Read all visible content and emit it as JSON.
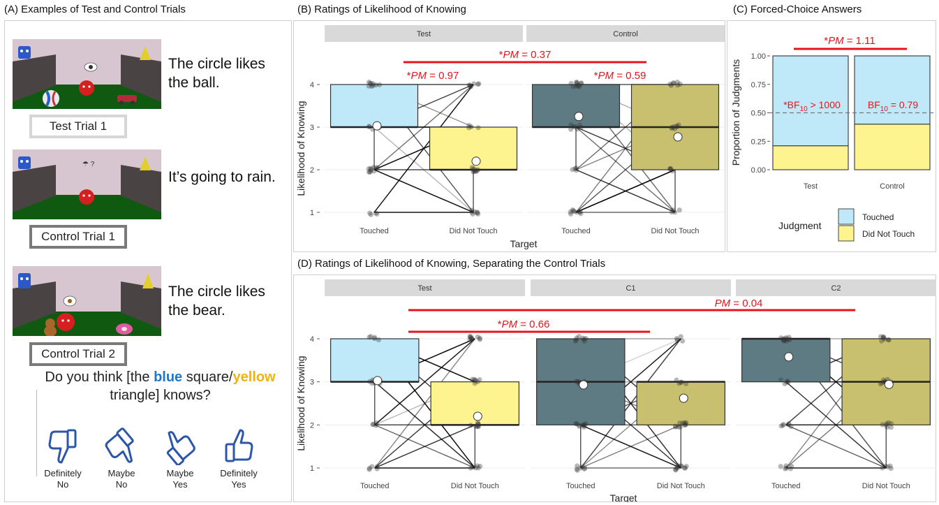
{
  "panel_titles": {
    "a": "(A) Examples of Test and Control Trials",
    "b": "(B) Ratings of Likelihood of Knowing",
    "c": "(C) Forced-Choice Answers",
    "d": "(D) Ratings of Likelihood of Knowing, Separating the Control Trials"
  },
  "trials": [
    {
      "caption": "The circle likes the ball.",
      "label": "Test Trial 1"
    },
    {
      "caption": "It’s going to rain.",
      "label": "Control Trial 1"
    },
    {
      "caption": "The circle likes the bear.",
      "label": "Control Trial 2"
    }
  ],
  "question": {
    "pre": "Do you think [the ",
    "blue": "blue",
    "mid": " square/",
    "yellow": "yellow",
    "post": " triangle] knows?"
  },
  "options": [
    {
      "line1": "Definitely",
      "line2": "No"
    },
    {
      "line1": "Maybe",
      "line2": "No"
    },
    {
      "line1": "Maybe",
      "line2": "Yes"
    },
    {
      "line1": "Definitely",
      "line2": "Yes"
    }
  ],
  "colors": {
    "touched_test": "#bfe9f9",
    "dnt_test": "#fdf38f",
    "touched_control": "#5e7b84",
    "dnt_control": "#c8c06e",
    "significance": "#e8141c",
    "strip": "#d9d9d9",
    "icon_blue": "#2c57a8"
  },
  "chart_data": [
    {
      "id": "B",
      "type": "box",
      "ylabel": "Likelihood of Knowing",
      "xlabel": "Target",
      "ylim": [
        1,
        4
      ],
      "yticks": [
        1,
        2,
        3,
        4
      ],
      "facets": [
        {
          "name": "Test",
          "boxes": [
            {
              "category": "Touched",
              "q1": 3,
              "median": 3,
              "q3": 4,
              "whisker_low": 2,
              "whisker_high": 4,
              "mean": 3.03
            },
            {
              "category": "Did Not Touch",
              "q1": 2,
              "median": 2,
              "q3": 3,
              "whisker_low": 1,
              "whisker_high": 3,
              "mean": 2.2
            }
          ]
        },
        {
          "name": "Control",
          "boxes": [
            {
              "category": "Touched",
              "q1": 3,
              "median": 3,
              "q3": 4,
              "whisker_low": 2,
              "whisker_high": 4,
              "mean": 3.25
            },
            {
              "category": "Did Not Touch",
              "q1": 2,
              "median": 3,
              "q3": 4,
              "whisker_low": 1,
              "whisker_high": 4,
              "mean": 2.77
            }
          ]
        }
      ],
      "annotations": [
        {
          "text": "*PM = 0.37",
          "scope": "between Test and Control"
        },
        {
          "text": "*PM = 0.97",
          "scope": "Test"
        },
        {
          "text": "*PM = 0.59",
          "scope": "Control"
        }
      ]
    },
    {
      "id": "C",
      "type": "bar",
      "stacked": true,
      "ylabel": "Proportion of Judgments",
      "categories": [
        "Test",
        "Control"
      ],
      "ylim": [
        0,
        1
      ],
      "yticks": [
        "0.00",
        "0.25",
        "0.50",
        "0.75",
        "1.00"
      ],
      "series": [
        {
          "name": "Did Not Touch",
          "values": [
            0.21,
            0.4
          ]
        },
        {
          "name": "Touched",
          "values": [
            0.79,
            0.6
          ]
        }
      ],
      "reference_line": 0.5,
      "legend_title": "Judgment",
      "legend_position": "bottom",
      "annotations": [
        {
          "text": "*PM = 1.11",
          "scope": "Test vs Control"
        },
        {
          "text": "*BF10 > 1000",
          "scope": "Test"
        },
        {
          "text": "BF10 = 0.79",
          "scope": "Control"
        }
      ]
    },
    {
      "id": "D",
      "type": "box",
      "ylabel": "Likelihood of Knowing",
      "xlabel": "Target",
      "ylim": [
        1,
        4
      ],
      "yticks": [
        1,
        2,
        3,
        4
      ],
      "facets": [
        {
          "name": "Test",
          "boxes": [
            {
              "category": "Touched",
              "q1": 3,
              "median": 3,
              "q3": 4,
              "whisker_low": 2,
              "whisker_high": 4,
              "mean": 3.03
            },
            {
              "category": "Did Not Touch",
              "q1": 2,
              "median": 2,
              "q3": 3,
              "whisker_low": 1,
              "whisker_high": 3,
              "mean": 2.2
            }
          ]
        },
        {
          "name": "C1",
          "boxes": [
            {
              "category": "Touched",
              "q1": 2,
              "median": 3,
              "q3": 4,
              "whisker_low": 1,
              "whisker_high": 4,
              "mean": 2.93
            },
            {
              "category": "Did Not Touch",
              "q1": 2,
              "median": 3,
              "q3": 3,
              "whisker_low": 1,
              "whisker_high": 3,
              "mean": 2.62
            }
          ]
        },
        {
          "name": "C2",
          "boxes": [
            {
              "category": "Touched",
              "q1": 3,
              "median": 4,
              "q3": 4,
              "whisker_low": 3,
              "whisker_high": 4,
              "mean": 3.58
            },
            {
              "category": "Did Not Touch",
              "q1": 2,
              "median": 3,
              "q3": 4,
              "whisker_low": 1,
              "whisker_high": 4,
              "mean": 2.94
            }
          ]
        }
      ],
      "annotations": [
        {
          "text": "PM = 0.04",
          "scope": "Test vs C2"
        },
        {
          "text": "*PM = 0.66",
          "scope": "Test vs C1"
        }
      ]
    }
  ]
}
